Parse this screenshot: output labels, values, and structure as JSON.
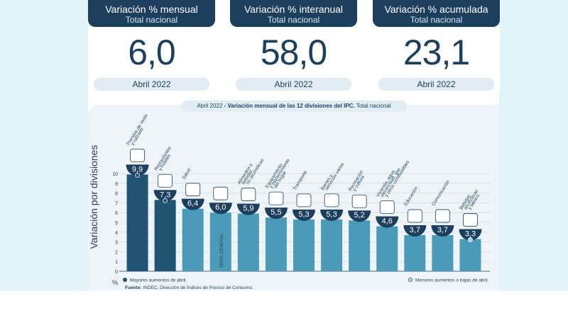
{
  "cards": [
    {
      "title": "Variación % mensual",
      "subtitle": "Total nacional",
      "value": "6,0",
      "period": "Abril 2022"
    },
    {
      "title": "Variación % interanual",
      "subtitle": "Total nacional",
      "value": "58,0",
      "period": "Abril 2022"
    },
    {
      "title": "Variación % acumulada",
      "subtitle": "Total nacional",
      "value": "23,1",
      "period": "Abril 2022"
    }
  ],
  "chart_title": {
    "period": "Abril 2022",
    "main": " - Variación mensual de las 12 divisiones del IPC.",
    "tail": " Total nacional"
  },
  "colors": {
    "navy": "#1d3f5e",
    "dark_bar": "#1f5572",
    "bar": "#4a9ab8",
    "grid": "#c6d9e2",
    "axis_text": "#1d3f5e",
    "marker_light": "#9fcfe0"
  },
  "chart_data": {
    "type": "bar",
    "title": "Abril 2022 - Variación mensual de las 12 divisiones del IPC. Total nacional",
    "ylabel": "Variación por divisiones",
    "yunit": "%",
    "ylim": [
      0,
      10
    ],
    "yticks": [
      0,
      1,
      2,
      3,
      4,
      5,
      6,
      7,
      8,
      9,
      10
    ],
    "categories": [
      "Prendas de vestir y calzado",
      "Restaurantes y hoteles",
      "Salud",
      "Nivel general",
      "Alimentos y bebidas no alcohólicas",
      "Equipamiento y mantenimiento del hogar",
      "Transporte",
      "Bienes y servicios varios",
      "Recreación y cultura",
      "Vivienda, agua, electricidad, gas y otros combustibles",
      "Educación",
      "Comunicación",
      "Bebidas alcohólicas y tabaco"
    ],
    "labels": [
      [
        "Prendas de vestir",
        "y calzado"
      ],
      [
        "Restaurantes",
        "y hoteles"
      ],
      [
        "Salud"
      ],
      [],
      [
        "Alimentos y",
        "bebidas",
        "no alcohólicas"
      ],
      [
        "Equipamiento",
        "y mantenimiento",
        "del hogar"
      ],
      [
        "Transporte"
      ],
      [
        "Bienes y",
        "servicios varios"
      ],
      [
        "Recreación",
        "y cultura"
      ],
      [
        "Vivienda, agua,",
        "electricidad, gas",
        "y otros combustibles"
      ],
      [
        "Educación"
      ],
      [
        "Comunicación"
      ],
      [
        "Bebidas",
        "alcohólicas",
        "y tabaco"
      ]
    ],
    "values": [
      9.9,
      7.3,
      6.4,
      6.0,
      5.9,
      5.5,
      5.3,
      5.3,
      5.2,
      4.6,
      3.7,
      3.7,
      3.3
    ],
    "value_labels": [
      "9,9",
      "7,3",
      "6,4",
      "6,0",
      "5,9",
      "5,5",
      "5,3",
      "5,3",
      "5,2",
      "4,6",
      "3,7",
      "3,7",
      "3,3"
    ],
    "highlight": [
      "max",
      "max",
      "normal",
      "general",
      "normal",
      "normal",
      "normal",
      "normal",
      "normal",
      "normal",
      "normal",
      "normal",
      "min"
    ],
    "general_bar_label": "NIVEL GENERAL",
    "legend": [
      {
        "kind": "max",
        "label": "Mayores aumentos de abril."
      },
      {
        "kind": "min",
        "label": "Menores aumentos o bajas de abril."
      }
    ],
    "source": {
      "label": "Fuente:",
      "text": " INDEC, Dirección de Índices de Precios de Consumo."
    }
  }
}
